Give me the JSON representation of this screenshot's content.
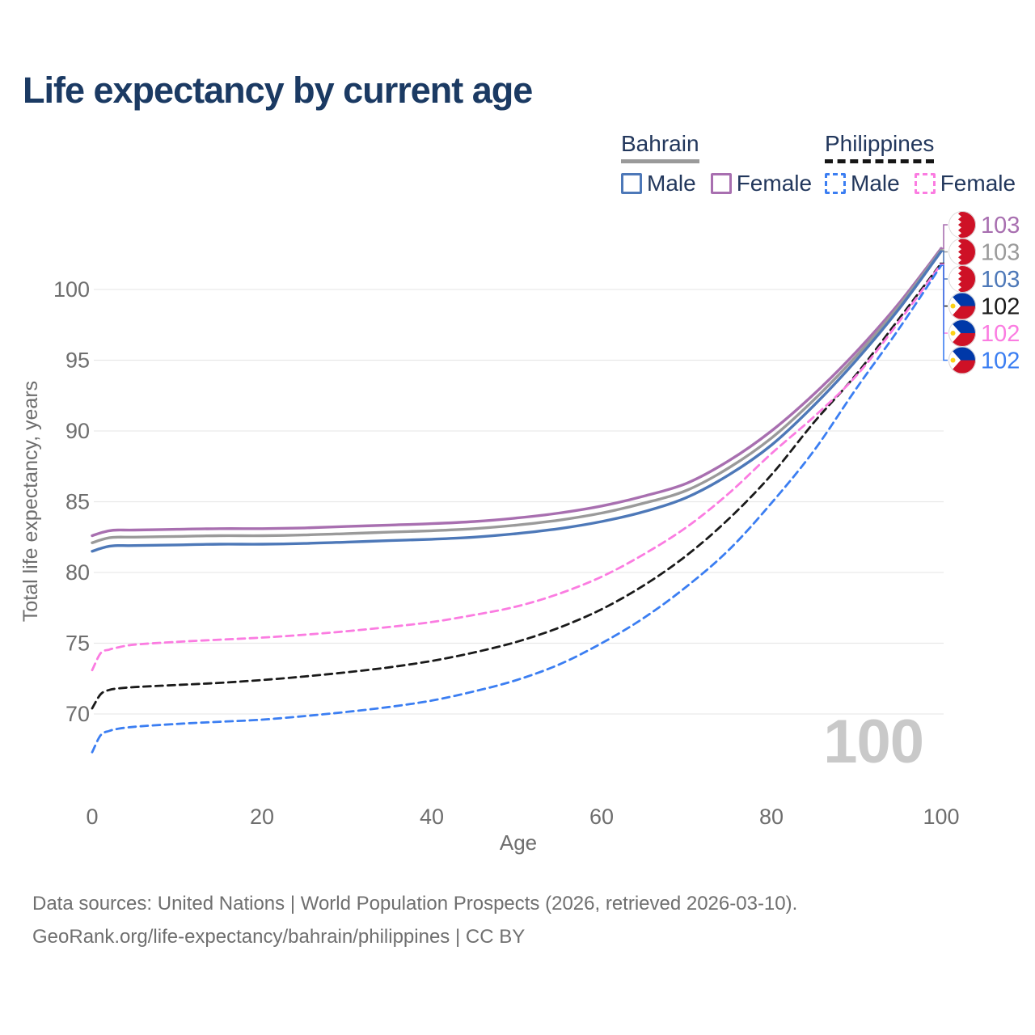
{
  "title": "Life expectancy by current age",
  "legend": {
    "bahrain": {
      "title": "Bahrain",
      "male": "Male",
      "female": "Female"
    },
    "philippines": {
      "title": "Philippines",
      "male": "Male",
      "female": "Female"
    }
  },
  "footer": {
    "line1": "Data sources: United Nations | World Population Prospects (2026, retrieved 2026-03-10).",
    "line2": "GeoRank.org/life-expectancy/bahrain/philippines | CC BY"
  },
  "colors": {
    "title_text": "#1b3a63",
    "legend_text": "#22375c",
    "axis_text": "#6e6e6e",
    "gridline": "#e9e9e9",
    "watermark": "#c9c9c9",
    "bahrain_male": "#4d78b8",
    "bahrain_female": "#a86fb0",
    "bahrain_both": "#9a9a9a",
    "philippines_male": "#3b7ef2",
    "philippines_female": "#fb7ce1",
    "philippines_both": "#1a1a1a",
    "bahrain_legend_underline": "#9a9a9a",
    "philippines_legend_underline": "#161616"
  },
  "chart_data": {
    "type": "line",
    "title": "Life expectancy by current age",
    "xlabel": "Age",
    "ylabel": "Total life expectancy, years",
    "xlim": [
      0,
      100
    ],
    "ylim": [
      66,
      104
    ],
    "x_ticks": [
      0,
      20,
      40,
      60,
      80,
      100
    ],
    "y_ticks": [
      70,
      75,
      80,
      85,
      90,
      95,
      100
    ],
    "grid": "horizontal",
    "legend_position": "top-right",
    "watermark": "100",
    "ages": [
      0,
      1,
      2,
      3,
      5,
      10,
      15,
      20,
      25,
      30,
      35,
      40,
      45,
      50,
      55,
      60,
      65,
      70,
      75,
      80,
      85,
      90,
      95,
      100
    ],
    "series": [
      {
        "name": "Bahrain Female",
        "country": "Bahrain",
        "sex": "Female",
        "line_style": "solid",
        "color": "#a86fb0",
        "flag": "bahrain",
        "end_label": "103",
        "label_row": 0,
        "values": [
          82.6,
          82.8,
          82.95,
          83.0,
          83.0,
          83.05,
          83.1,
          83.1,
          83.15,
          83.25,
          83.35,
          83.45,
          83.6,
          83.85,
          84.2,
          84.7,
          85.4,
          86.3,
          87.9,
          90.0,
          92.6,
          95.6,
          99.0,
          102.9
        ]
      },
      {
        "name": "Bahrain Both sexes",
        "country": "Bahrain",
        "sex": "Both",
        "line_style": "solid",
        "color": "#9a9a9a",
        "flag": "bahrain",
        "end_label": "103",
        "label_row": 1,
        "values": [
          82.1,
          82.3,
          82.45,
          82.5,
          82.5,
          82.55,
          82.6,
          82.6,
          82.65,
          82.75,
          82.85,
          82.95,
          83.1,
          83.35,
          83.7,
          84.2,
          84.9,
          85.8,
          87.4,
          89.5,
          92.2,
          95.3,
          98.8,
          102.8
        ]
      },
      {
        "name": "Bahrain Male",
        "country": "Bahrain",
        "sex": "Male",
        "line_style": "solid",
        "color": "#4d78b8",
        "flag": "bahrain",
        "end_label": "103",
        "label_row": 2,
        "values": [
          81.5,
          81.7,
          81.85,
          81.9,
          81.9,
          81.95,
          82.0,
          82.0,
          82.05,
          82.15,
          82.25,
          82.35,
          82.5,
          82.75,
          83.1,
          83.6,
          84.3,
          85.3,
          86.9,
          89.0,
          91.8,
          95.0,
          98.6,
          102.7
        ]
      },
      {
        "name": "Philippines Both sexes",
        "country": "Philippines",
        "sex": "Both",
        "line_style": "dashed",
        "color": "#1a1a1a",
        "flag": "philippines",
        "end_label": "102",
        "label_row": 3,
        "values": [
          70.4,
          71.4,
          71.7,
          71.8,
          71.9,
          72.05,
          72.2,
          72.4,
          72.65,
          72.95,
          73.3,
          73.75,
          74.35,
          75.1,
          76.1,
          77.4,
          79.1,
          81.2,
          83.8,
          86.9,
          90.6,
          94.0,
          97.9,
          101.85
        ]
      },
      {
        "name": "Philippines Female",
        "country": "Philippines",
        "sex": "Female",
        "line_style": "dashed",
        "color": "#fb7ce1",
        "flag": "philippines",
        "end_label": "102",
        "label_row": 4,
        "values": [
          73.1,
          74.3,
          74.55,
          74.7,
          74.9,
          75.1,
          75.25,
          75.4,
          75.6,
          75.85,
          76.15,
          76.5,
          77.0,
          77.6,
          78.5,
          79.7,
          81.3,
          83.2,
          85.6,
          88.4,
          91.0,
          93.9,
          97.7,
          101.8
        ]
      },
      {
        "name": "Philippines Male",
        "country": "Philippines",
        "sex": "Male",
        "line_style": "dashed",
        "color": "#3b7ef2",
        "flag": "philippines",
        "end_label": "102",
        "label_row": 5,
        "values": [
          67.3,
          68.5,
          68.8,
          68.95,
          69.1,
          69.3,
          69.45,
          69.6,
          69.85,
          70.15,
          70.5,
          70.95,
          71.6,
          72.4,
          73.5,
          75.0,
          76.8,
          79.0,
          81.6,
          84.9,
          88.6,
          93.0,
          97.2,
          101.7
        ]
      }
    ]
  }
}
